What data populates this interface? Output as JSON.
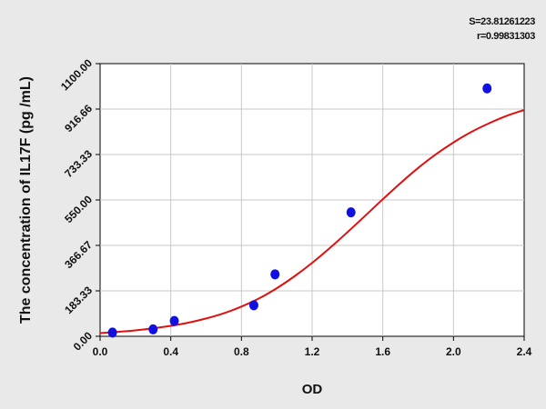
{
  "stats": {
    "s_text": "S=23.81261223",
    "r_text": "r=0.99831303"
  },
  "chart_data": {
    "type": "scatter",
    "xlabel": "OD",
    "ylabel": "The concentration of IL17F (pg /mL)",
    "xlim": [
      0.0,
      2.4
    ],
    "ylim": [
      0.0,
      1100.0
    ],
    "x_ticks": [
      "0.0",
      "0.4",
      "0.8",
      "1.2",
      "1.6",
      "2.0",
      "2.4"
    ],
    "y_ticks": [
      "0.00",
      "183.33",
      "366.67",
      "550.00",
      "733.33",
      "916.66",
      "1100.00"
    ],
    "grid": true,
    "points": [
      {
        "x": 0.07,
        "y": 15
      },
      {
        "x": 0.3,
        "y": 28
      },
      {
        "x": 0.42,
        "y": 62
      },
      {
        "x": 0.87,
        "y": 125
      },
      {
        "x": 0.99,
        "y": 250
      },
      {
        "x": 1.42,
        "y": 500
      },
      {
        "x": 2.19,
        "y": 1000
      }
    ],
    "fit_curve": {
      "x": [
        0.0,
        0.1,
        0.2,
        0.3,
        0.4,
        0.5,
        0.6,
        0.7,
        0.8,
        0.9,
        1.0,
        1.1,
        1.2,
        1.3,
        1.4,
        1.5,
        1.6,
        1.7,
        1.8,
        1.9,
        2.0,
        2.1,
        2.2,
        2.3,
        2.4
      ],
      "y": [
        13,
        18,
        24,
        32,
        42,
        55,
        72,
        93,
        120,
        153,
        194,
        242,
        296,
        356,
        420,
        486,
        553,
        618,
        679,
        734,
        782,
        824,
        859,
        889,
        913
      ]
    },
    "colors": {
      "points": "#1010e0",
      "curve": "#e01010",
      "grid": "#c8c8c8",
      "plot_bg": "#ffffff"
    }
  }
}
